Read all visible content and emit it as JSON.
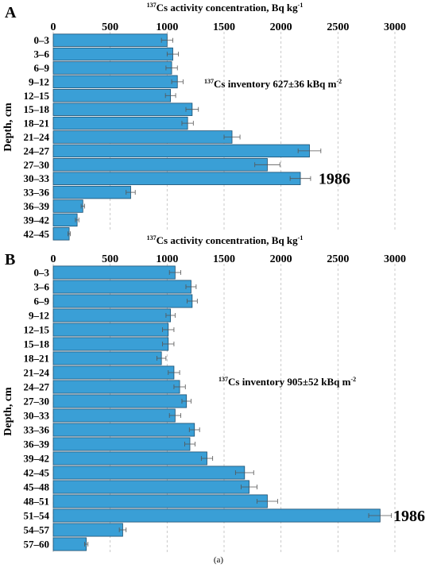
{
  "figure": {
    "caption": "(a)"
  },
  "colors": {
    "bar": "#3a9fd6",
    "bar_edge": "#1b4d6e",
    "grid": "#bdbdbd",
    "error": "#555555"
  },
  "chart_data": [
    {
      "type": "bar",
      "orientation": "horizontal",
      "panel_label": "A",
      "xlabel_prefix": "137",
      "xlabel_main": "Cs activity concentration, Bq kg",
      "xlabel_exp": "-1",
      "ylabel": "Depth, cm",
      "xlim": [
        0,
        3000
      ],
      "xticks": [
        0,
        500,
        1000,
        1500,
        2000,
        2500,
        3000
      ],
      "grid": "vertical dashed",
      "categories": [
        "0–3",
        "3–6",
        "6–9",
        "9–12",
        "12–15",
        "15–18",
        "18–21",
        "21–24",
        "24–27",
        "27–30",
        "30–33",
        "33–36",
        "36–39",
        "39–42",
        "42–45"
      ],
      "values": [
        1000,
        1050,
        1040,
        1090,
        1030,
        1220,
        1180,
        1570,
        2250,
        1880,
        2170,
        680,
        260,
        210,
        140
      ],
      "errors": [
        50,
        50,
        50,
        50,
        45,
        55,
        50,
        70,
        100,
        110,
        90,
        40,
        15,
        15,
        10
      ],
      "annotation_prefix": "137",
      "annotation_main": "Cs inventory 627±36 kBq m",
      "annotation_exp": "-2",
      "marker_text": "1986",
      "marker_index": 10
    },
    {
      "type": "bar",
      "orientation": "horizontal",
      "panel_label": "B",
      "xlabel_prefix": "137",
      "xlabel_main": "Cs activity concentration, Bq kg",
      "xlabel_exp": "-1",
      "ylabel": "Depth, cm",
      "xlim": [
        0,
        3000
      ],
      "xticks": [
        0,
        500,
        1000,
        1500,
        2000,
        2500,
        3000
      ],
      "grid": "vertical dashed",
      "categories": [
        "0–3",
        "3–6",
        "6–9",
        "9–12",
        "12–15",
        "15–18",
        "18–21",
        "21–24",
        "24–27",
        "27–30",
        "30–33",
        "33–36",
        "36–39",
        "39–42",
        "42–45",
        "45–48",
        "48–51",
        "51–54",
        "54–57",
        "57–60"
      ],
      "values": [
        1070,
        1210,
        1220,
        1030,
        1010,
        1010,
        950,
        1060,
        1110,
        1170,
        1070,
        1240,
        1200,
        1350,
        1680,
        1720,
        1880,
        2870,
        610,
        290
      ],
      "errors": [
        50,
        45,
        45,
        40,
        50,
        50,
        40,
        50,
        50,
        40,
        50,
        45,
        45,
        50,
        80,
        70,
        90,
        100,
        30,
        15
      ],
      "annotation_prefix": "137",
      "annotation_main": "Cs inventory 905±52 kBq m",
      "annotation_exp": "-2",
      "marker_text": "1986",
      "marker_index": 17
    }
  ]
}
